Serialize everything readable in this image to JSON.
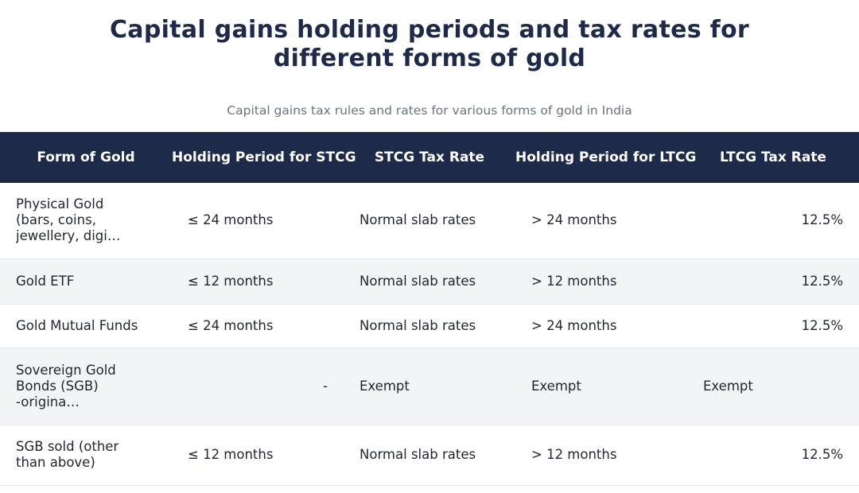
{
  "title_lines": [
    "Capital gains holding periods and tax rates for",
    "different forms of gold"
  ],
  "subtitle": "Capital gains tax rules and rates for various forms of gold in India",
  "colors": {
    "header_bg": "#1e2a4a",
    "title": "#1e2a4a",
    "stripe": "#f3f4f6"
  },
  "table": {
    "headers": [
      "Form of Gold",
      "Holding Period for STCG",
      "STCG Tax Rate",
      "Holding Period for LTCG",
      "LTCG Tax Rate"
    ],
    "rows": [
      {
        "form_lines": [
          "Physical Gold",
          "(bars, coins,",
          "jewellery, digi…"
        ],
        "stcg_period": "≤ 24 months",
        "stcg_rate": "Normal slab rates",
        "ltcg_period": "> 24 months",
        "ltcg_rate": "12.5%"
      },
      {
        "form_lines": [
          "Gold ETF"
        ],
        "stcg_period": "≤ 12 months",
        "stcg_rate": "Normal slab rates",
        "ltcg_period": "> 12 months",
        "ltcg_rate": "12.5%"
      },
      {
        "form_lines": [
          "Gold Mutual Funds"
        ],
        "stcg_period": "≤ 24 months",
        "stcg_rate": "Normal slab rates",
        "ltcg_period": "> 24 months",
        "ltcg_rate": "12.5%"
      },
      {
        "form_lines": [
          "Sovereign Gold",
          "Bonds (SGB)",
          "-origina…"
        ],
        "stcg_period": "-",
        "stcg_rate": "Exempt",
        "ltcg_period": "Exempt",
        "ltcg_rate": "Exempt"
      },
      {
        "form_lines": [
          "SGB sold (other",
          "than above)"
        ],
        "stcg_period": "≤ 12 months",
        "stcg_rate": "Normal slab rates",
        "ltcg_period": "> 12 months",
        "ltcg_rate": "12.5%"
      }
    ]
  }
}
